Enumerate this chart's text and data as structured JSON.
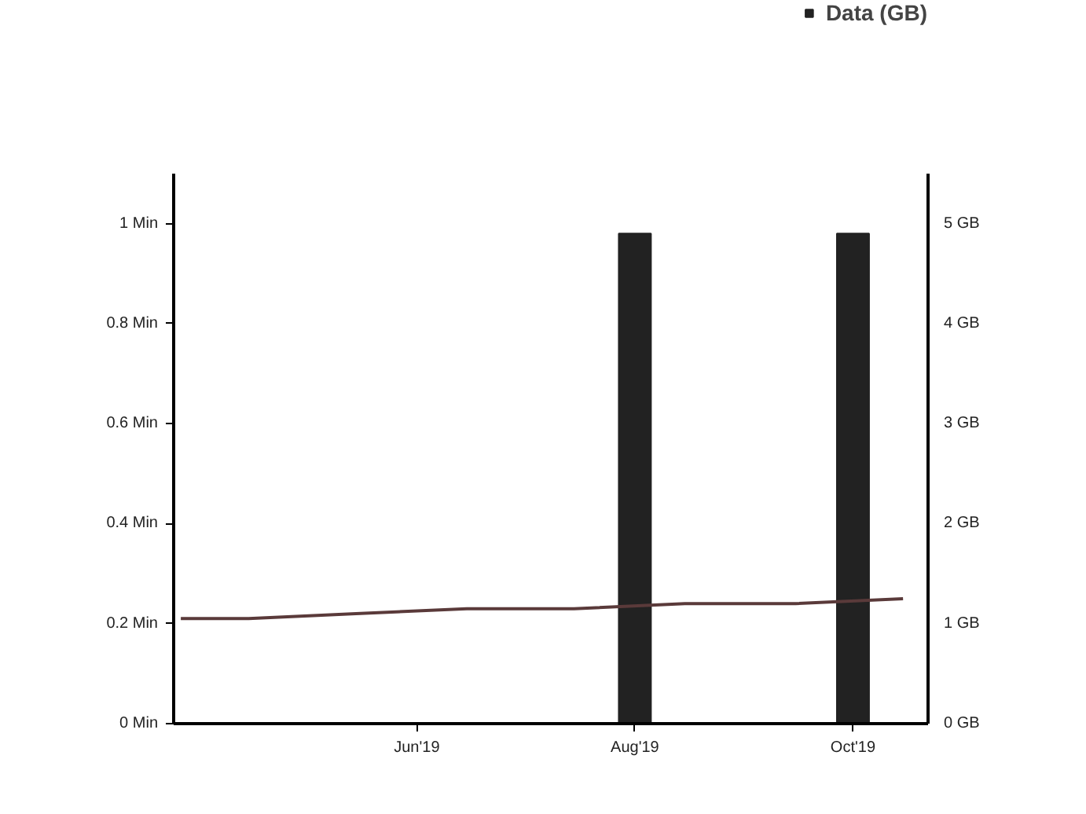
{
  "chart_data": {
    "type": "bar",
    "x": [
      "2019-08-01",
      "2019-10-01"
    ],
    "series": [
      {
        "name": "Data (GB)",
        "axis": "y2",
        "color": "#222222",
        "values": [
          4.9,
          4.9
        ]
      },
      {
        "type": "line",
        "color": "#5a3a3a",
        "x": [
          "2019-03-27",
          "2019-04-15",
          "2019-05-15",
          "2019-06-15",
          "2019-07-15",
          "2019-08-15",
          "2019-09-15",
          "2019-10-15"
        ],
        "values": [
          0.21,
          0.21,
          0.22,
          0.23,
          0.23,
          0.24,
          0.24,
          0.25
        ]
      }
    ],
    "xlim": [
      "2019-03-25",
      "2019-10-22"
    ],
    "xticks": [
      {
        "value": "2019-06-01",
        "label": "Jun'19"
      },
      {
        "value": "2019-08-01",
        "label": "Aug'19"
      },
      {
        "value": "2019-10-01",
        "label": "Oct'19"
      }
    ],
    "ylim": [
      0,
      1.1
    ],
    "yticks": [
      {
        "value": 0,
        "label": "0 Min"
      },
      {
        "value": 0.2,
        "label": "0.2 Min"
      },
      {
        "value": 0.4,
        "label": "0.4 Min"
      },
      {
        "value": 0.6,
        "label": "0.6 Min"
      },
      {
        "value": 0.8,
        "label": "0.8 Min"
      },
      {
        "value": 1,
        "label": "1 Min"
      }
    ],
    "y2lim": [
      0,
      5.5
    ],
    "y2ticks": [
      {
        "value": 0,
        "label": "0 GB"
      },
      {
        "value": 1,
        "label": "1 GB"
      },
      {
        "value": 2,
        "label": "2 GB"
      },
      {
        "value": 3,
        "label": "3 GB"
      },
      {
        "value": 4,
        "label": "4 GB"
      },
      {
        "value": 5,
        "label": "5 GB"
      }
    ],
    "grid": false,
    "legend": "top right",
    "line_style": "solid",
    "marker": "none"
  }
}
